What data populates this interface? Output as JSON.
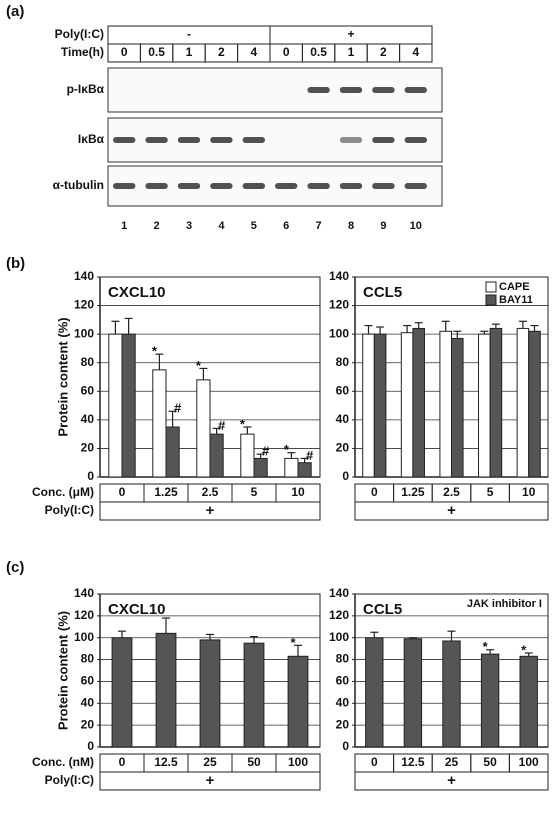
{
  "panel_a": {
    "label": "(a)",
    "rows": [
      {
        "label": "Poly(I:C)",
        "cells": [
          "-",
          "+"
        ]
      },
      {
        "label": "Time(h)",
        "cells": [
          0,
          0.5,
          1,
          2,
          4,
          0,
          0.5,
          1,
          2,
          4
        ]
      }
    ],
    "blots": [
      "p-IκBα",
      "IκBα",
      "α-tubulin"
    ],
    "lanes": [
      1,
      2,
      3,
      4,
      5,
      6,
      7,
      8,
      9,
      10
    ]
  },
  "panel_labels": [
    "(b)",
    "(c)"
  ],
  "chart_data": [
    {
      "type": "bar",
      "title": "CXCL10",
      "y_label": "Protein content (%)",
      "x_label": "Conc. (μM)",
      "treatment_label": "Poly(I:C)",
      "treatment": "+",
      "categories": [
        "0",
        "1.25",
        "2.5",
        "5",
        "10"
      ],
      "ylim": [
        0,
        140
      ],
      "yticks": [
        0,
        20,
        40,
        60,
        80,
        100,
        120,
        140
      ],
      "grid": true,
      "series": [
        {
          "name": "CAPE",
          "color": "#ffffff",
          "values": [
            100,
            75,
            68,
            30,
            13
          ],
          "errors": [
            9,
            11,
            8,
            5,
            4
          ],
          "significance": [
            null,
            "*",
            "*",
            "*",
            "*"
          ]
        },
        {
          "name": "BAY11",
          "color": "#555555",
          "values": [
            100,
            35,
            30,
            13,
            10
          ],
          "errors": [
            11,
            11,
            4,
            3,
            3
          ],
          "significance": [
            null,
            "#",
            "#",
            "#",
            "#"
          ]
        }
      ]
    },
    {
      "type": "bar",
      "title": "CCL5",
      "legend": "top-right",
      "treatment": "+",
      "categories": [
        "0",
        "1.25",
        "2.5",
        "5",
        "10"
      ],
      "ylim": [
        0,
        140
      ],
      "yticks": [
        0,
        20,
        40,
        60,
        80,
        100,
        120,
        140
      ],
      "grid": true,
      "series": [
        {
          "name": "CAPE",
          "color": "#ffffff",
          "values": [
            100,
            101,
            102,
            100,
            104
          ],
          "errors": [
            6,
            5,
            7,
            2,
            5
          ]
        },
        {
          "name": "BAY11",
          "color": "#555555",
          "values": [
            100,
            104,
            97,
            104,
            102
          ],
          "errors": [
            5,
            4,
            5,
            3,
            4
          ]
        }
      ]
    },
    {
      "type": "bar",
      "title": "CXCL10",
      "y_label": "Protein content (%)",
      "x_label": "Conc. (nM)",
      "treatment_label": "Poly(I:C)",
      "treatment": "+",
      "categories": [
        "0",
        "12.5",
        "25",
        "50",
        "100"
      ],
      "ylim": [
        0,
        140
      ],
      "yticks": [
        0,
        20,
        40,
        60,
        80,
        100,
        120,
        140
      ],
      "grid": true,
      "series": [
        {
          "color": "#555555",
          "values": [
            100,
            104,
            98,
            95,
            83
          ],
          "errors": [
            6,
            14,
            5,
            6,
            10
          ],
          "significance": [
            null,
            null,
            null,
            null,
            "*"
          ]
        }
      ]
    },
    {
      "type": "bar",
      "title": "CCL5",
      "legend": "top-right",
      "treatment": "+",
      "categories": [
        "0",
        "12.5",
        "25",
        "50",
        "100"
      ],
      "ylim": [
        0,
        140
      ],
      "yticks": [
        0,
        20,
        40,
        60,
        80,
        100,
        120,
        140
      ],
      "grid": true,
      "series": [
        {
          "name": "JAK inhibitor I",
          "color": "#555555",
          "values": [
            100,
            99,
            97,
            85,
            83
          ],
          "errors": [
            5,
            1,
            9,
            4,
            3
          ],
          "significance": [
            null,
            null,
            null,
            "*",
            "*"
          ]
        }
      ]
    }
  ]
}
